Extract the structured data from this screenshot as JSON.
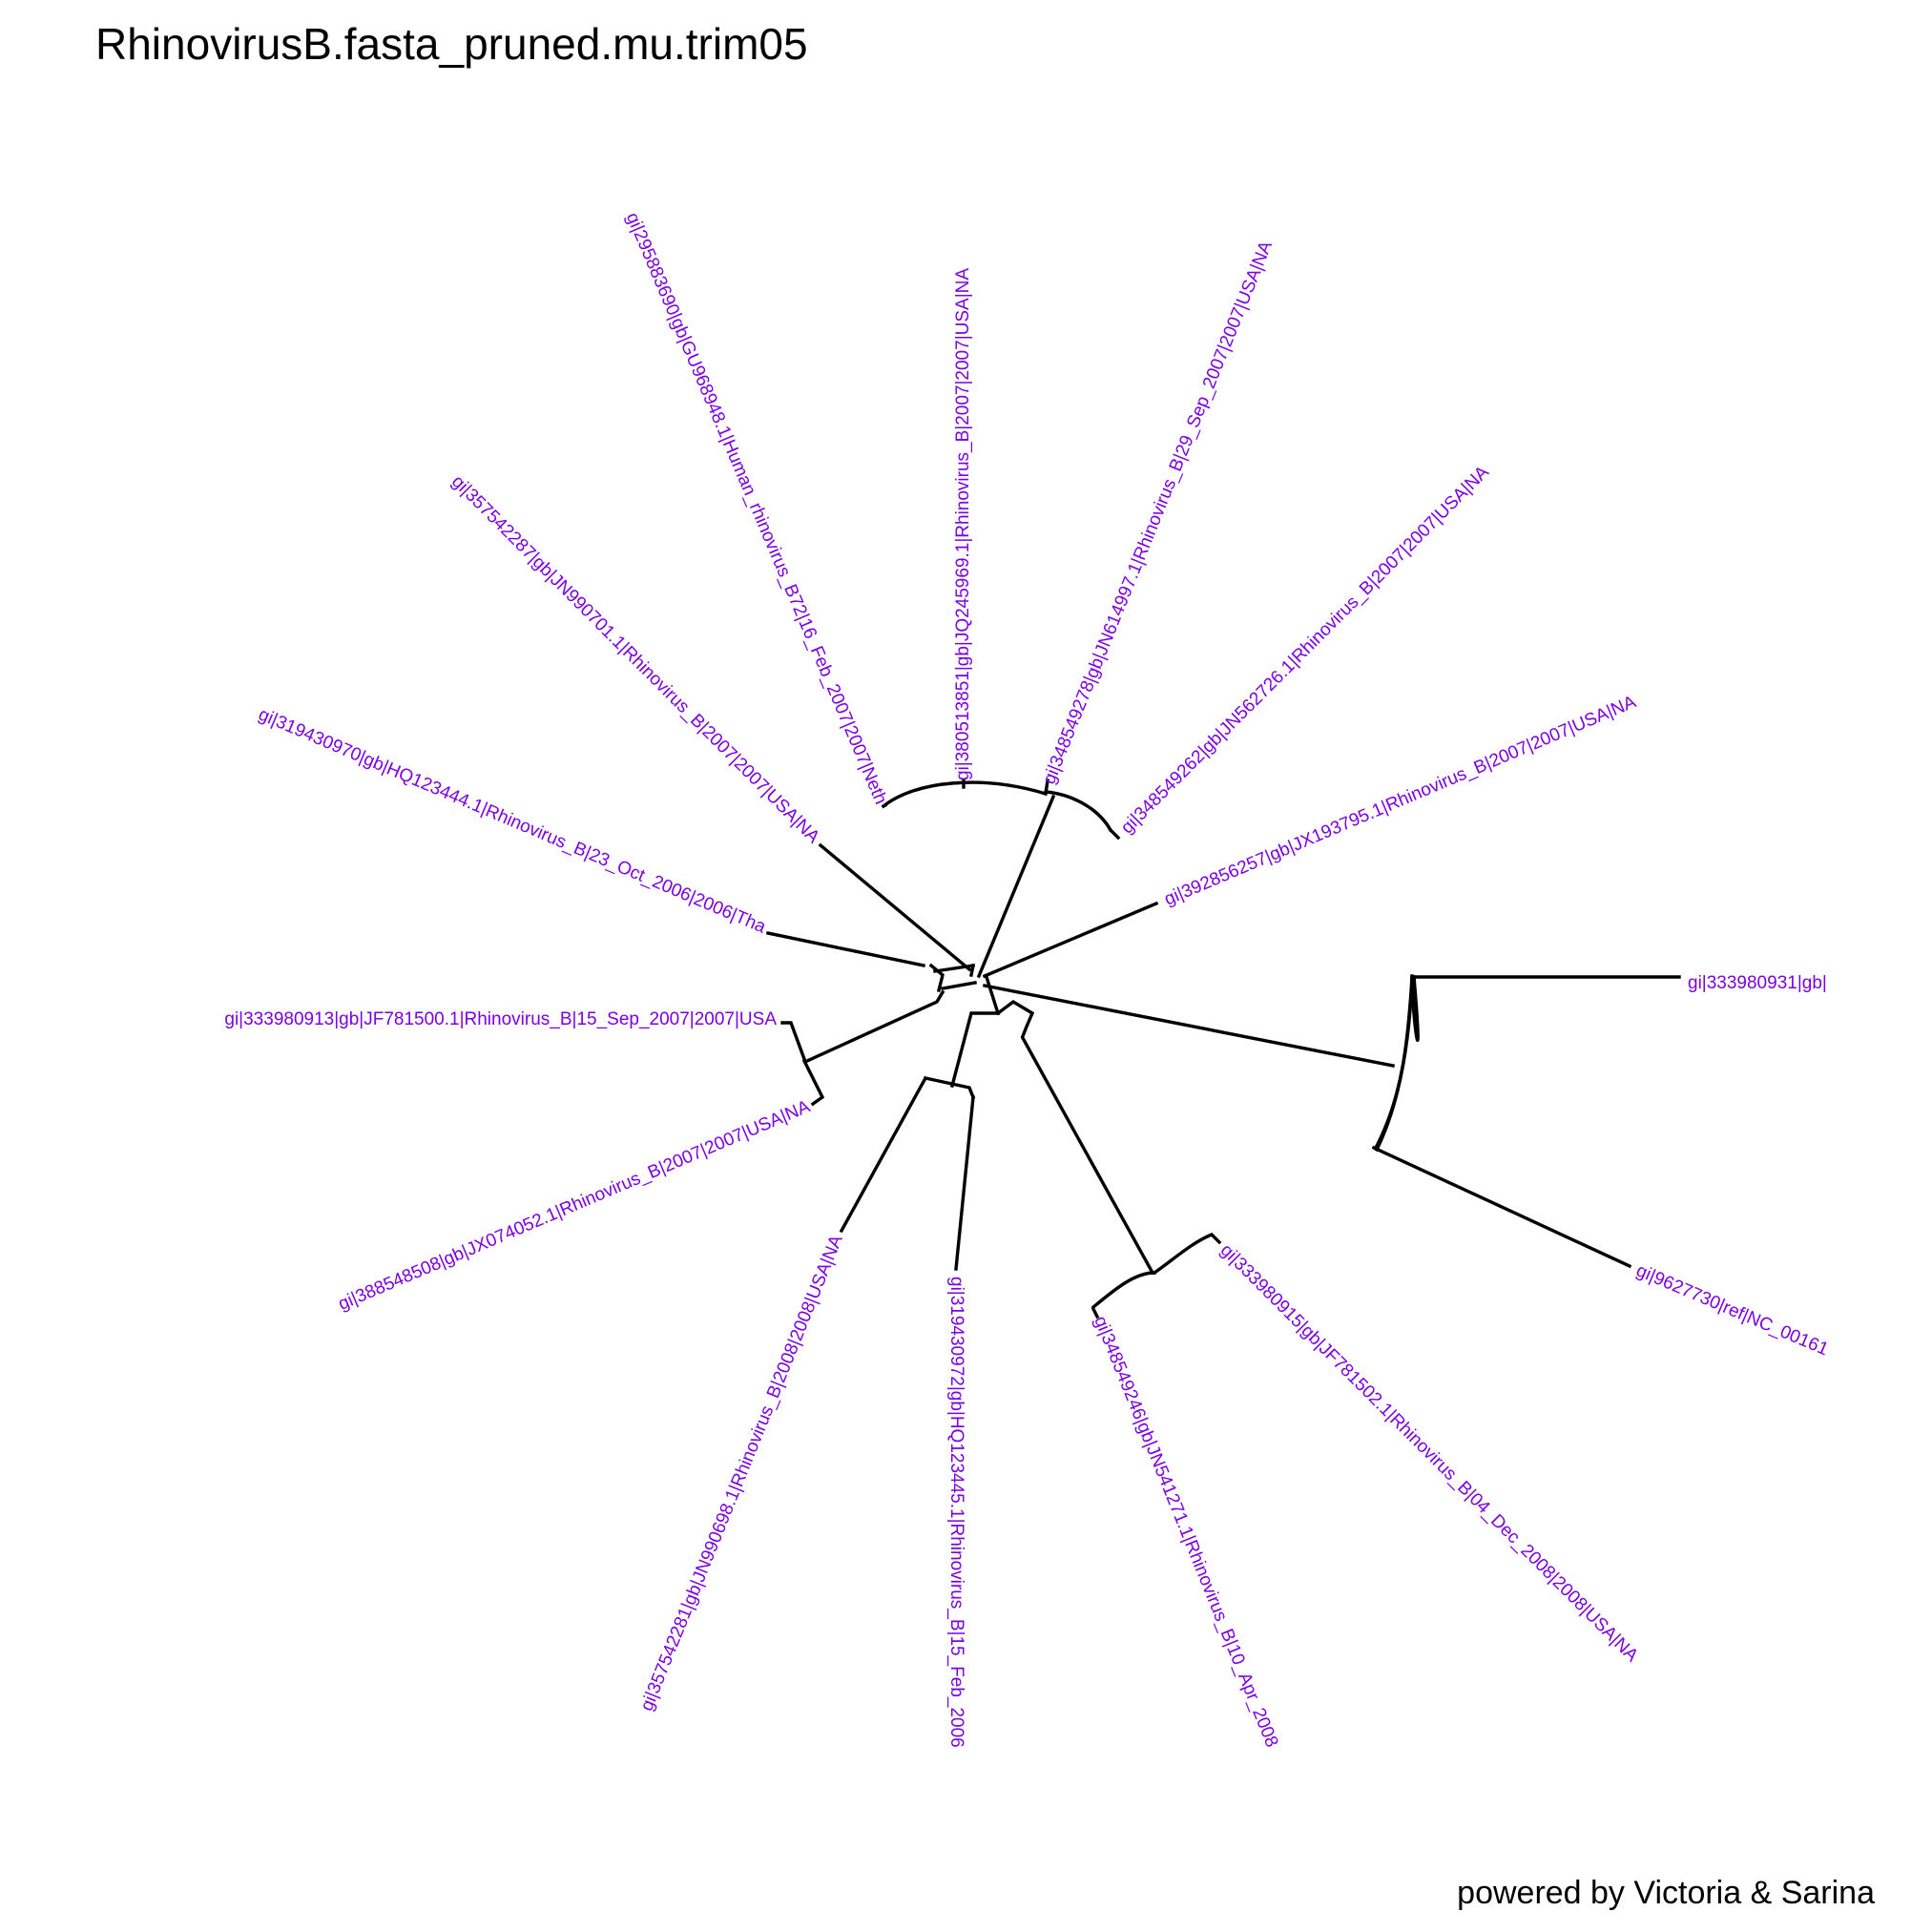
{
  "title": "RhinovirusB.fasta_pruned.mu.trim05",
  "footer": "powered by Victoria & Sarina",
  "colors": {
    "label": "#7b00e6",
    "branch": "#000000",
    "background": "#ffffff"
  },
  "tree": {
    "layout": "radial",
    "leaves": [
      "gi|333980931|gb|",
      "gi|392856257|gb|JX193795.1|Rhinovirus_B|2007|2007|USA|NA",
      "gi|348549262|gb|JN562726.1|Rhinovirus_B|2007|2007|USA|NA",
      "gi|348549278|gb|JN614997.1|Rhinovirus_B|29_Sep_2007|2007|USA|NA",
      "gi|380513851|gb|JQ245969.1|Rhinovirus_B|2007|2007|USA|NA",
      "gi|295883690|gb|GU968948.1|Human_rhinovirus_B72|16_Feb_2007|2007|Neth",
      "gi|357542287|gb|JN990701.1|Rhinovirus_B|2007|2007|USA|NA",
      "gi|319430970|gb|HQ123444.1|Rhinovirus_B|23_Oct_2006|2006|Tha",
      "gi|333980913|gb|JF781500.1|Rhinovirus_B|15_Sep_2007|2007|USA",
      "gi|388548508|gb|JX074052.1|Rhinovirus_B|2007|2007|USA|NA",
      "gi|357542281|gb|JN990698.1|Rhinovirus_B|2008|2008|USA|NA",
      "gi|319430972|gb|HQ123445.1|Rhinovirus_B|15_Feb_2006",
      "gi|348549246|gb|JN541271.1|Rhinovirus_B|10_Apr_2008",
      "gi|333980915|gb|JF781502.1|Rhinovirus_B|04_Dec_2008|2008|USA|NA",
      "gi|9627730|ref|NC_00161"
    ]
  }
}
